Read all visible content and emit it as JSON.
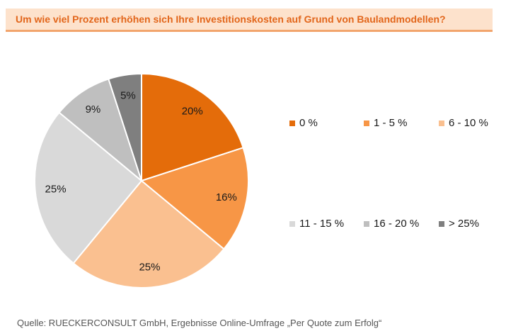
{
  "title": "Um wie viel Prozent erhöhen sich Ihre Investitionskosten auf Grund von Baulandmodellen?",
  "source": "Quelle: RUECKERCONSULT GmbH, Ergebnisse Online-Umfrage „Per Quote zum Erfolg“",
  "chart_data": {
    "type": "pie",
    "title": "Um wie viel Prozent erhöhen sich Ihre Investitionskosten auf Grund von Baulandmodellen?",
    "categories": [
      "0 %",
      "1 - 5 %",
      "6 - 10 %",
      "11 - 15 %",
      "16 - 20 %",
      "> 25%"
    ],
    "values": [
      20,
      16,
      25,
      25,
      9,
      5
    ],
    "labels": [
      "20%",
      "16%",
      "25%",
      "25%",
      "9%",
      "5%"
    ],
    "colors": [
      "#e46c0a",
      "#f79646",
      "#fac090",
      "#d9d9d9",
      "#bfbfbf",
      "#7f7f7f"
    ],
    "legend_position": "right",
    "start_angle": "12 o'clock",
    "direction": "clockwise"
  }
}
